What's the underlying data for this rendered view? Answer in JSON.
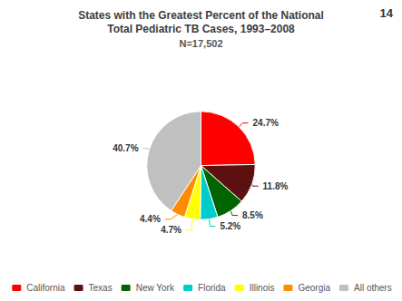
{
  "chart_data": {
    "type": "pie",
    "title": "States with the Greatest Percent of the National\nTotal Pediatric TB Cases, 1993–2008",
    "subtitle": "N=17,502",
    "categories": [
      "California",
      "Texas",
      "New York",
      "Florida",
      "Illinois",
      "Georgia",
      "All others"
    ],
    "values": [
      24.7,
      11.8,
      8.5,
      5.2,
      4.7,
      4.4,
      40.7
    ],
    "value_labels": [
      "24.7%",
      "11.8%",
      "8.5%",
      "5.2%",
      "4.7%",
      "4.4%",
      "40.7%"
    ],
    "colors": [
      "#ff0000",
      "#5c1010",
      "#006400",
      "#00cccc",
      "#ffff00",
      "#ff8c00",
      "#c0c0c0"
    ],
    "data_labels": true,
    "legend": "bottom",
    "annotations": [
      "14"
    ]
  }
}
